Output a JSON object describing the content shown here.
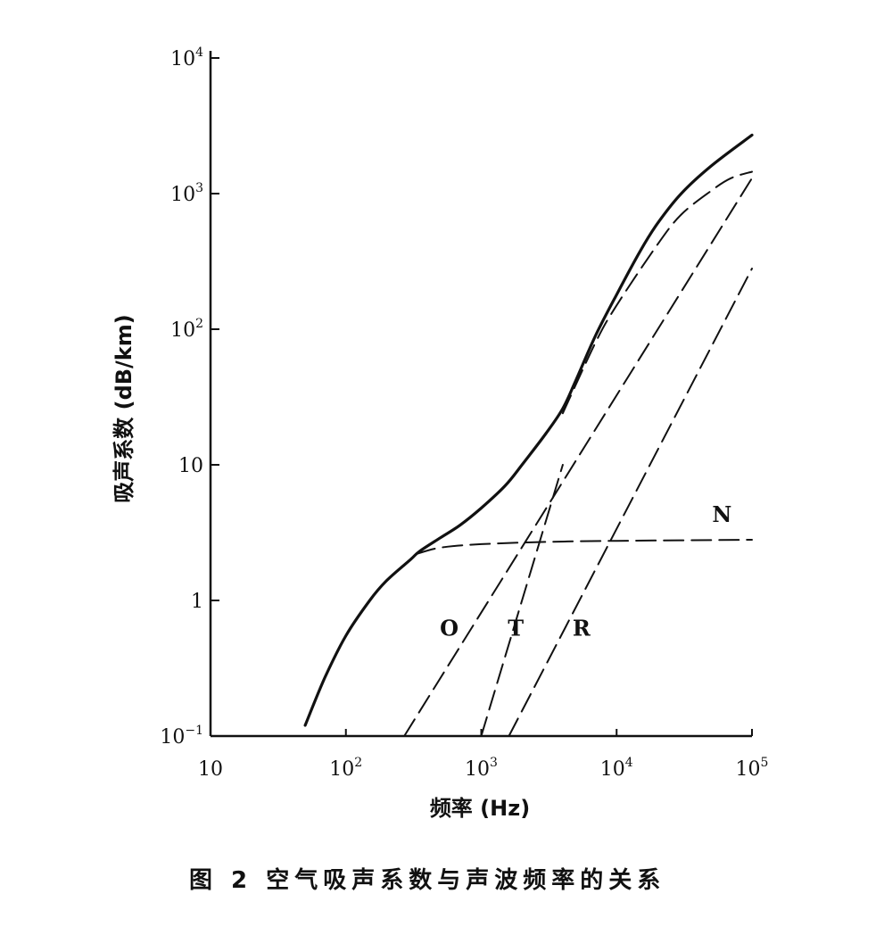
{
  "caption": "图 2   空气吸声系数与声波频率的关系",
  "chart_data": {
    "type": "line",
    "xlabel": "频率 (Hz)",
    "ylabel": "吸声系数 (dB/km)",
    "x_scale": "log",
    "y_scale": "log",
    "xlim": [
      10,
      100000
    ],
    "ylim": [
      0.1,
      10000
    ],
    "x_ticks": [
      {
        "value": 10,
        "base": "10",
        "exp": ""
      },
      {
        "value": 100,
        "base": "10",
        "exp": "2"
      },
      {
        "value": 1000,
        "base": "10",
        "exp": "3"
      },
      {
        "value": 10000,
        "base": "10",
        "exp": "4"
      },
      {
        "value": 100000,
        "base": "10",
        "exp": "5"
      }
    ],
    "y_ticks": [
      {
        "value": 0.1,
        "base": "10",
        "exp": "−1"
      },
      {
        "value": 1,
        "base": "1",
        "exp": ""
      },
      {
        "value": 10,
        "base": "10",
        "exp": ""
      },
      {
        "value": 100,
        "base": "10",
        "exp": "2"
      },
      {
        "value": 1000,
        "base": "10",
        "exp": "3"
      },
      {
        "value": 10000,
        "base": "10",
        "exp": "4"
      }
    ],
    "series": [
      {
        "id": "total",
        "style": "solid",
        "x": [
          50,
          70,
          100,
          150,
          200,
          300,
          350,
          500,
          700,
          1000,
          1500,
          2000,
          3000,
          4000,
          5000,
          7000,
          10000,
          15000,
          20000,
          30000,
          50000,
          100000
        ],
        "y": [
          0.12,
          0.27,
          0.55,
          1.0,
          1.4,
          2.0,
          2.3,
          2.9,
          3.6,
          4.8,
          7.0,
          10.0,
          17.0,
          26.0,
          42.0,
          90.0,
          180.0,
          380.0,
          600.0,
          1000.0,
          1600.0,
          2700.0
        ]
      },
      {
        "id": "N",
        "style": "dashed",
        "x": [
          330,
          500,
          1000,
          3000,
          10000,
          100000
        ],
        "y": [
          2.2,
          2.45,
          2.6,
          2.7,
          2.75,
          2.8
        ]
      },
      {
        "id": "O",
        "style": "dashed",
        "x": [
          270,
          100000
        ],
        "y": [
          0.1,
          1300
        ]
      },
      {
        "id": "T",
        "style": "dashed",
        "x": [
          1000,
          4000
        ],
        "y": [
          0.1,
          10
        ]
      },
      {
        "id": "R",
        "style": "dashed",
        "x": [
          1600,
          100000
        ],
        "y": [
          0.1,
          280
        ]
      },
      {
        "id": "envelope",
        "style": "dashed",
        "x": [
          4000,
          7000,
          10000,
          20000,
          30000,
          50000,
          70000,
          100000
        ],
        "y": [
          24.0,
          80.0,
          150.0,
          420.0,
          700.0,
          1050.0,
          1300.0,
          1450.0
        ]
      }
    ],
    "curve_labels": [
      {
        "text": "N",
        "x": 60000,
        "y": 3.8
      },
      {
        "text": "O",
        "x": 580,
        "y": 0.55
      },
      {
        "text": "T",
        "x": 1800,
        "y": 0.55
      },
      {
        "text": "R",
        "x": 5500,
        "y": 0.55
      }
    ]
  }
}
